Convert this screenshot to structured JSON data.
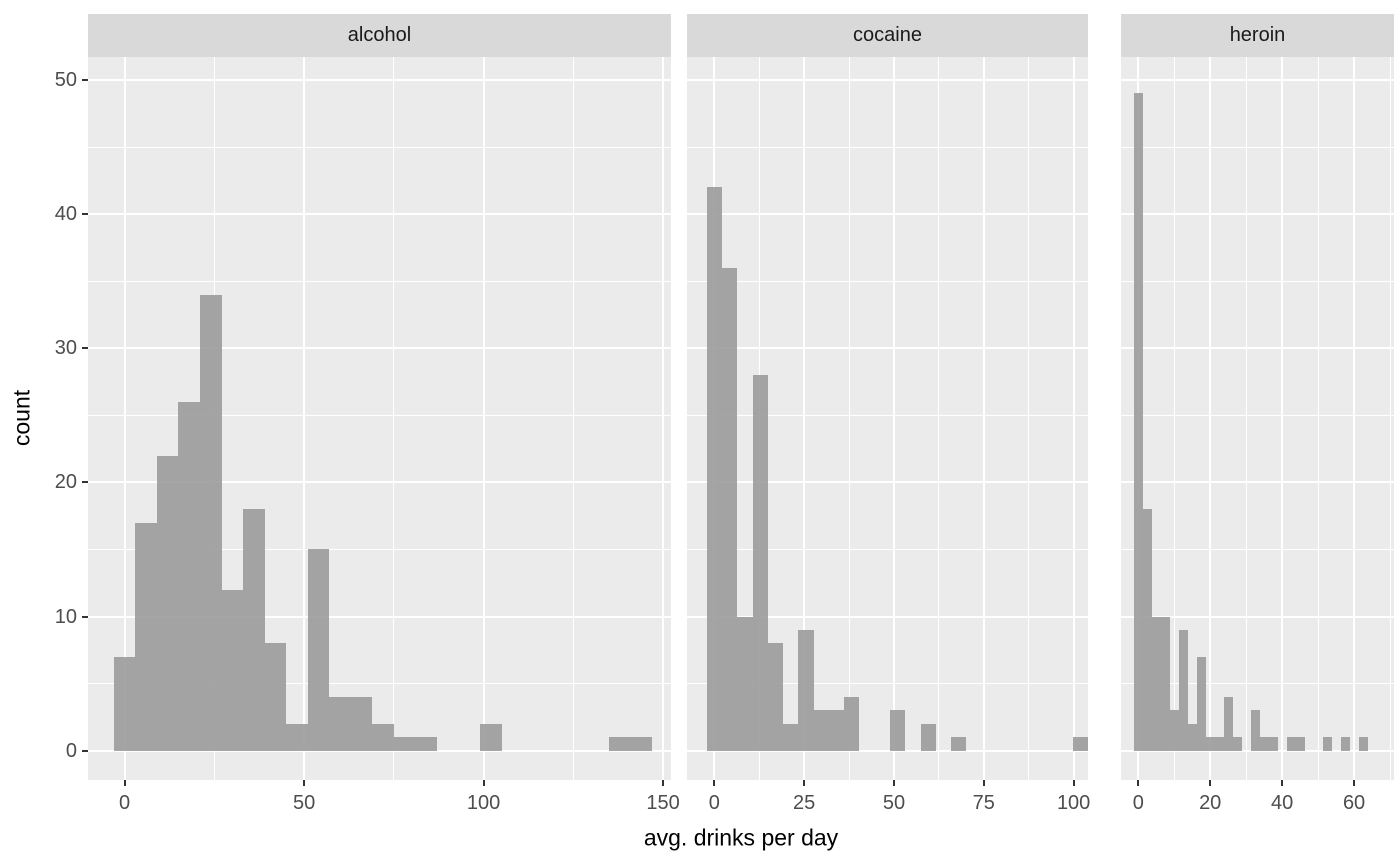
{
  "chart_data": {
    "type": "histogram",
    "title": "",
    "xlabel": "avg. drinks per day",
    "ylabel": "count",
    "ylim": [
      0,
      50
    ],
    "y_ticks": [
      0,
      10,
      20,
      30,
      40,
      50
    ],
    "y_minor_ticks": [
      5,
      15,
      25,
      35,
      45
    ],
    "grid": "white major+minor gridlines on grey panel",
    "legend": "none",
    "facets": [
      {
        "name": "alcohol",
        "x_ticks": [
          0,
          50,
          100,
          150
        ],
        "x_minor_ticks": [
          25,
          75,
          125
        ],
        "bin_start": -3,
        "bin_width": 6,
        "counts": [
          7,
          17,
          22,
          26,
          34,
          12,
          18,
          8,
          2,
          15,
          4,
          4,
          2,
          1,
          1,
          0,
          0,
          2,
          0,
          0,
          0,
          0,
          0,
          1,
          1
        ]
      },
      {
        "name": "cocaine",
        "x_ticks": [
          0,
          25,
          50,
          75,
          100
        ],
        "x_minor_ticks": [
          12.5,
          37.5,
          62.5,
          87.5
        ],
        "bin_start": -2.1,
        "bin_width": 4.25,
        "counts": [
          42,
          36,
          10,
          28,
          8,
          2,
          9,
          3,
          3,
          4,
          0,
          0,
          3,
          0,
          2,
          0,
          1,
          0,
          0,
          0,
          0,
          0,
          0,
          0,
          1
        ]
      },
      {
        "name": "heroin",
        "x_ticks": [
          0,
          20,
          40,
          60
        ],
        "x_minor_ticks": [
          10,
          30,
          50,
          70
        ],
        "bin_start": -1.25,
        "bin_width": 2.5,
        "counts": [
          49,
          18,
          10,
          10,
          3,
          9,
          2,
          7,
          1,
          1,
          4,
          1,
          0,
          3,
          1,
          1,
          0,
          1,
          1,
          0,
          0,
          1,
          0,
          1,
          0,
          1
        ]
      }
    ]
  },
  "colors": {
    "background": "#FFFFFF",
    "panel_bg": "#EBEBEB",
    "strip_bg": "#D9D9D9",
    "strip_text": "#1A1A1A",
    "bar_fill": "#9B9B9B",
    "gridline": "#FFFFFF",
    "tick_mark": "#333333",
    "tick_label": "#4D4D4D",
    "axis_title": "#000000"
  }
}
